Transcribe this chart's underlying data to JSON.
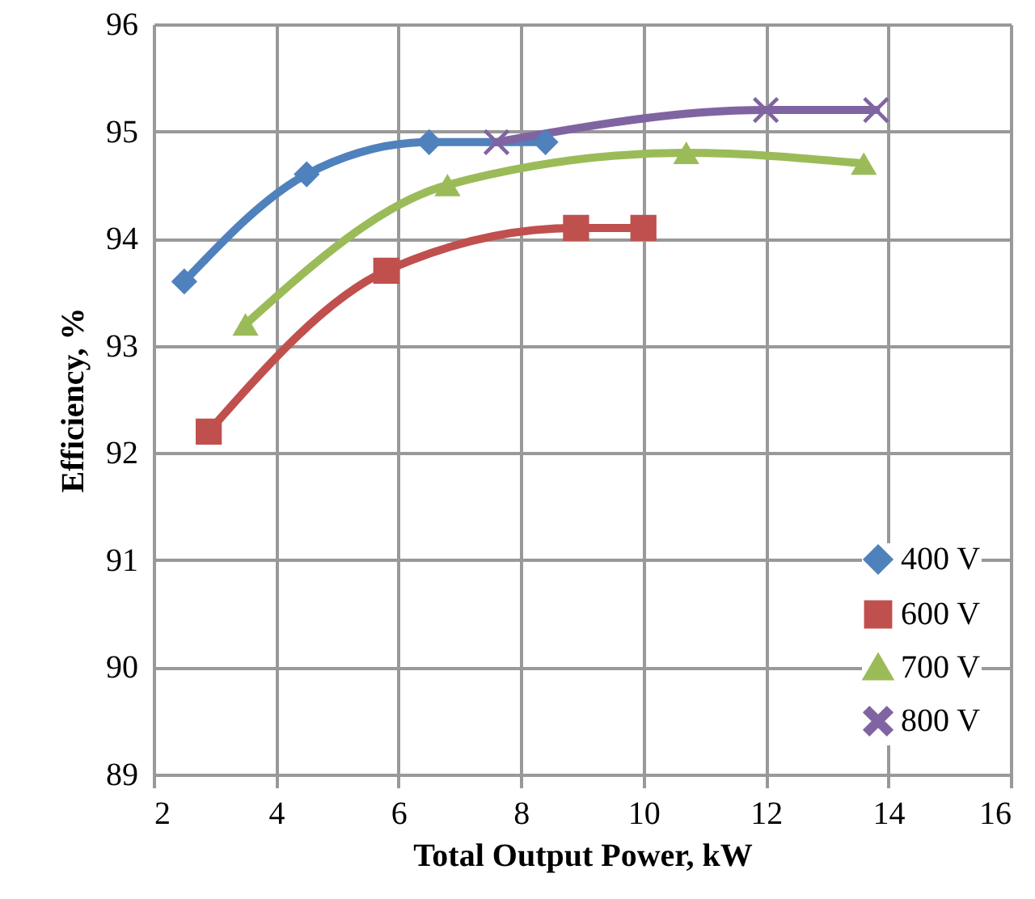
{
  "chart_data": {
    "type": "line",
    "xlabel": "Total Output Power, kW",
    "ylabel": "Efficiency, %",
    "xlim": [
      2,
      16
    ],
    "xticks": [
      2,
      4,
      6,
      8,
      10,
      12,
      14,
      16
    ],
    "ylim": [
      89,
      96
    ],
    "yticks": [
      89,
      90,
      91,
      92,
      93,
      94,
      95,
      96
    ],
    "grid": true,
    "legend": "bottom right",
    "series": [
      {
        "name": "400 V",
        "color": "#4f81bd",
        "marker": "diamond",
        "x": [
          2.5,
          4.5,
          6.5,
          8.4
        ],
        "values": [
          93.6,
          94.6,
          94.9,
          94.9
        ]
      },
      {
        "name": "600 V",
        "color": "#c0504d",
        "marker": "square",
        "x": [
          2.9,
          5.8,
          8.9,
          10.0
        ],
        "values": [
          92.2,
          93.7,
          94.1,
          94.1
        ]
      },
      {
        "name": "700 V",
        "color": "#9bbb59",
        "marker": "triangle",
        "x": [
          3.5,
          6.8,
          10.7,
          13.6
        ],
        "values": [
          93.2,
          94.5,
          94.8,
          94.7
        ]
      },
      {
        "name": "800 V",
        "color": "#8064a2",
        "marker": "cross",
        "x": [
          7.6,
          12.0,
          13.8
        ],
        "values": [
          94.9,
          95.2,
          95.2
        ]
      }
    ]
  }
}
